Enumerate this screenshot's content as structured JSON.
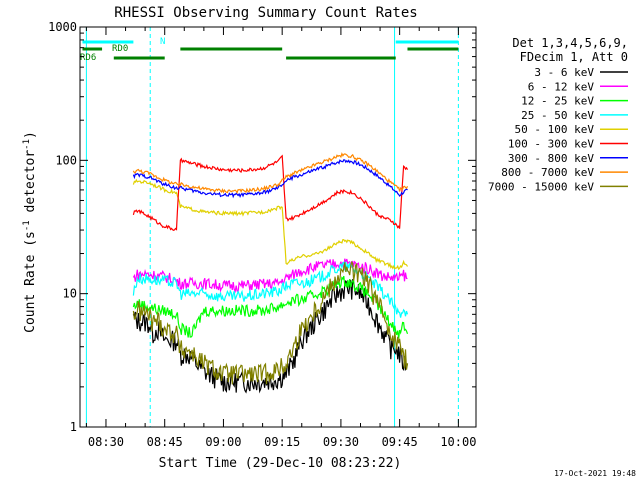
{
  "chart_data": {
    "type": "line",
    "title": "RHESSI Observing Summary Count Rates",
    "xlabel": "Start Time (29-Dec-10 08:23:22)",
    "ylabel": "Count Rate (s",
    "ylabel_sup": "-1",
    "ylabel_mid": " detector",
    "ylabel_end": ")",
    "y_scale": "log",
    "ylim": [
      1,
      1000
    ],
    "xlim": [
      "08:23",
      "10:04"
    ],
    "y_ticks": [
      {
        "value": 1,
        "label": "1"
      },
      {
        "value": 10,
        "label": "10"
      },
      {
        "value": 100,
        "label": "100"
      },
      {
        "value": 1000,
        "label": "1000"
      }
    ],
    "x_ticks": [
      {
        "minute": 30,
        "label": "08:30"
      },
      {
        "minute": 45,
        "label": "08:45"
      },
      {
        "minute": 60,
        "label": "09:00"
      },
      {
        "minute": 75,
        "label": "09:15"
      },
      {
        "minute": 90,
        "label": "09:30"
      },
      {
        "minute": 105,
        "label": "09:45"
      },
      {
        "minute": 120,
        "label": "10:00"
      }
    ],
    "legend_header": [
      "Det 1,3,4,5,6,9,",
      "FDecim 1, Att 0"
    ],
    "legend_placement": "right",
    "series": [
      {
        "name": "3 - 6 keV",
        "color": "#000000",
        "x": [
          37,
          38,
          41,
          42,
          43,
          45,
          48,
          49,
          51,
          55,
          60,
          65,
          70,
          74,
          76,
          78,
          80,
          84,
          87,
          89,
          91,
          93,
          95,
          97,
          99,
          101,
          103,
          104,
          105,
          106,
          107
        ],
        "y": [
          6.5,
          6.3,
          6.0,
          5.0,
          5.5,
          4.5,
          4.5,
          3.5,
          3.5,
          2.6,
          2.2,
          2.2,
          2.2,
          2.3,
          2.5,
          3.2,
          4.5,
          6.5,
          8.5,
          10,
          11,
          11,
          10,
          8.5,
          6.5,
          5,
          3.8,
          4,
          3.5,
          3,
          3
        ]
      },
      {
        "name": "6 - 12 keV",
        "color": "#ff00ff",
        "x": [
          37,
          38,
          41,
          44,
          45,
          48,
          49,
          55,
          60,
          65,
          70,
          74,
          76,
          78,
          80,
          84,
          87,
          89,
          91,
          93,
          95,
          97,
          99,
          101,
          103,
          105,
          106,
          107
        ],
        "y": [
          13,
          14,
          14,
          13.5,
          13.5,
          12.5,
          12,
          12,
          11.5,
          11.5,
          11.8,
          12,
          13,
          14,
          15,
          16,
          16.5,
          17,
          17,
          16.5,
          16,
          15.5,
          14.5,
          13.5,
          13.2,
          13,
          14,
          13
        ]
      },
      {
        "name": "12 - 25 keV",
        "color": "#00ff00",
        "x": [
          37,
          38,
          41,
          44,
          45,
          48,
          49,
          52,
          55,
          60,
          65,
          70,
          74,
          76,
          78,
          80,
          84,
          87,
          89,
          91,
          93,
          95,
          97,
          99,
          101,
          103,
          104,
          105,
          106,
          107
        ],
        "y": [
          8,
          8.5,
          8,
          7.5,
          7.5,
          7,
          5.5,
          5,
          7.5,
          7.5,
          7.5,
          7.5,
          8,
          8.5,
          9,
          9,
          10,
          11,
          12,
          12.5,
          12,
          11,
          10,
          8.5,
          7,
          5.8,
          5.5,
          5,
          6,
          5
        ]
      },
      {
        "name": "25 - 50 keV",
        "color": "#00ffff",
        "x": [
          37,
          38,
          41,
          44,
          45,
          48,
          49,
          55,
          60,
          65,
          70,
          74,
          76,
          78,
          80,
          84,
          87,
          89,
          91,
          93,
          95,
          97,
          99,
          101,
          103,
          104,
          105,
          106,
          107
        ],
        "y": [
          10,
          13,
          13,
          12.5,
          12.5,
          12,
          10,
          10,
          9.5,
          9.5,
          10,
          10.5,
          11.5,
          12,
          12,
          13,
          14.5,
          15.5,
          16,
          15.5,
          14.5,
          13,
          11.5,
          10,
          8.5,
          7.5,
          7,
          8,
          7
        ]
      },
      {
        "name": "50 - 100 keV",
        "color": "#e0d000",
        "x": [
          37,
          38,
          41,
          44,
          45,
          48,
          49,
          55,
          60,
          65,
          70,
          74,
          75,
          76,
          78,
          80,
          84,
          87,
          89,
          91,
          93,
          95,
          97,
          99,
          101,
          103,
          105,
          106,
          107
        ],
        "y": [
          67,
          70,
          68,
          62,
          60,
          57,
          45,
          41,
          40,
          40,
          41,
          44,
          45,
          17,
          18,
          19,
          20,
          22,
          24,
          25,
          24,
          22,
          20,
          18,
          17,
          16,
          15.5,
          17,
          16
        ]
      },
      {
        "name": "100 - 300 keV",
        "color": "#ff0000",
        "x": [
          37,
          38,
          41,
          44,
          45,
          48,
          49,
          55,
          60,
          65,
          70,
          74,
          75,
          76,
          78,
          80,
          84,
          87,
          89,
          91,
          93,
          95,
          97,
          99,
          101,
          103,
          105,
          106,
          107
        ],
        "y": [
          40,
          42,
          38,
          33,
          32,
          30,
          100,
          90,
          85,
          84,
          87,
          98,
          106,
          36,
          37,
          40,
          46,
          52,
          57,
          59,
          57,
          52,
          46,
          40,
          37,
          35,
          31,
          90,
          85
        ]
      },
      {
        "name": "300 - 800 keV",
        "color": "#0000ff",
        "x": [
          37,
          38,
          41,
          44,
          45,
          48,
          49,
          55,
          60,
          65,
          70,
          74,
          76,
          78,
          80,
          84,
          87,
          89,
          91,
          93,
          95,
          97,
          99,
          101,
          103,
          105,
          106,
          107
        ],
        "y": [
          76,
          78,
          75,
          68,
          66,
          62,
          62,
          57,
          55,
          55,
          57,
          62,
          70,
          75,
          78,
          86,
          92,
          97,
          100,
          98,
          93,
          86,
          78,
          70,
          62,
          55,
          58,
          60
        ]
      },
      {
        "name": "800 - 7000 keV",
        "color": "#ff8800",
        "x": [
          37,
          38,
          41,
          44,
          45,
          48,
          49,
          55,
          60,
          65,
          70,
          74,
          76,
          78,
          80,
          84,
          87,
          89,
          91,
          93,
          95,
          97,
          99,
          101,
          103,
          105,
          106,
          107
        ],
        "y": [
          82,
          84,
          80,
          73,
          71,
          66,
          66,
          61,
          59,
          59,
          61,
          66,
          75,
          80,
          84,
          94,
          101,
          107,
          110,
          107,
          100,
          93,
          84,
          75,
          67,
          60,
          62,
          64
        ]
      },
      {
        "name": "7000 - 15000 keV",
        "color": "#808000",
        "x": [
          37,
          38,
          41,
          42,
          43,
          45,
          48,
          49,
          51,
          55,
          60,
          65,
          70,
          74,
          76,
          78,
          80,
          84,
          87,
          89,
          91,
          93,
          95,
          97,
          99,
          101,
          103,
          104,
          105,
          106,
          107
        ],
        "y": [
          7,
          7.5,
          7,
          6,
          6.5,
          5.5,
          5,
          3.8,
          3.8,
          3,
          2.5,
          2.5,
          2.5,
          2.7,
          3,
          4,
          5.5,
          8,
          11,
          13.5,
          15,
          15,
          14,
          12,
          9,
          7,
          5,
          4.5,
          4,
          3.5,
          3
        ]
      }
    ],
    "annotations": [
      {
        "text": "N",
        "color": "#00ffff"
      },
      {
        "text": "RD0",
        "color": "#008000"
      },
      {
        "text": "RD6",
        "color": "#008000"
      }
    ],
    "event_lines_x_min": [
      25,
      41.3,
      103.7,
      120
    ]
  },
  "footer": {
    "timestamp": "17-Oct-2021 19:48"
  }
}
